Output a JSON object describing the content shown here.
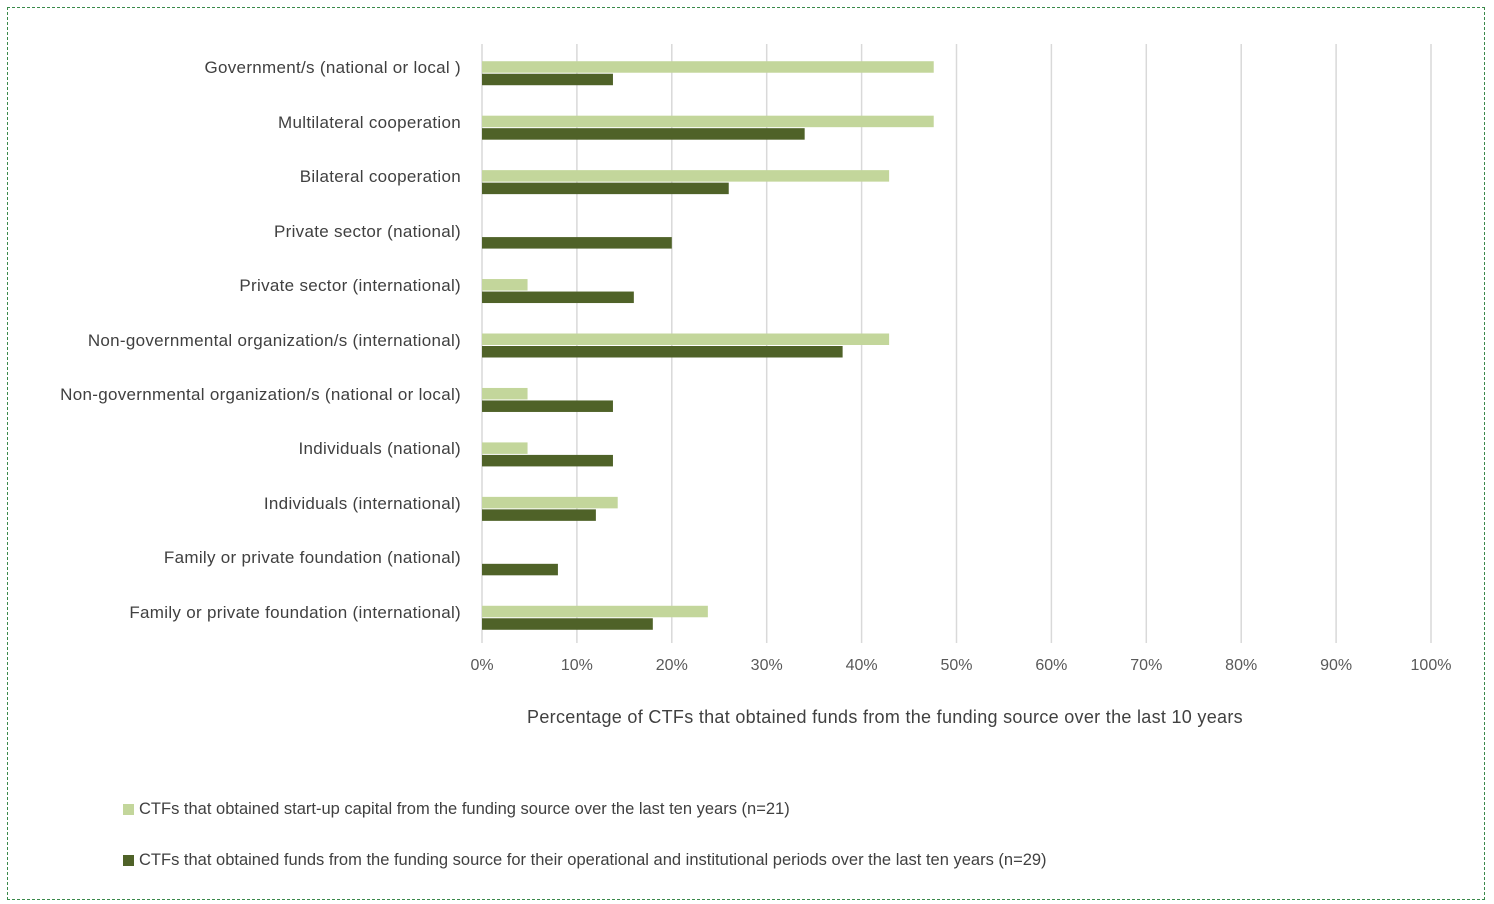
{
  "chart_data": {
    "type": "bar",
    "orientation": "horizontal",
    "categories": [
      "Government/s (national or local )",
      "Multilateral cooperation",
      "Bilateral cooperation",
      "Private sector (national)",
      "Private sector (international)",
      "Non-governmental organization/s (international)",
      "Non-governmental organization/s (national or local)",
      "Individuals (national)",
      "Individuals (international)",
      "Family or private foundation (national)",
      "Family or private foundation (international)"
    ],
    "series": [
      {
        "name": "CTFs that obtained start-up capital from the funding source over the last ten years (n=21)",
        "color": "#c3d69b",
        "values": [
          47.6,
          47.6,
          42.9,
          0,
          4.8,
          42.9,
          4.8,
          4.8,
          14.3,
          0,
          23.8
        ]
      },
      {
        "name": "CTFs that obtained funds from the funding source for their operational and institutional periods over the last ten years (n=29)",
        "color": "#4f6228",
        "values": [
          13.8,
          34.0,
          26.0,
          20.0,
          16.0,
          38.0,
          13.8,
          13.8,
          12.0,
          8.0,
          18.0
        ]
      }
    ],
    "x_ticks": [
      "0%",
      "10%",
      "20%",
      "30%",
      "40%",
      "50%",
      "60%",
      "70%",
      "80%",
      "90%",
      "100%"
    ],
    "xlim": [
      0,
      100
    ],
    "xlabel": "Percentage of CTFs that obtained funds from the funding source over the last 10 years",
    "ylabel": "",
    "grid": "vertical",
    "legend_position": "bottom-left"
  },
  "colors": {
    "grid": "#d9d9d9",
    "frame": "#3a8a4a"
  }
}
